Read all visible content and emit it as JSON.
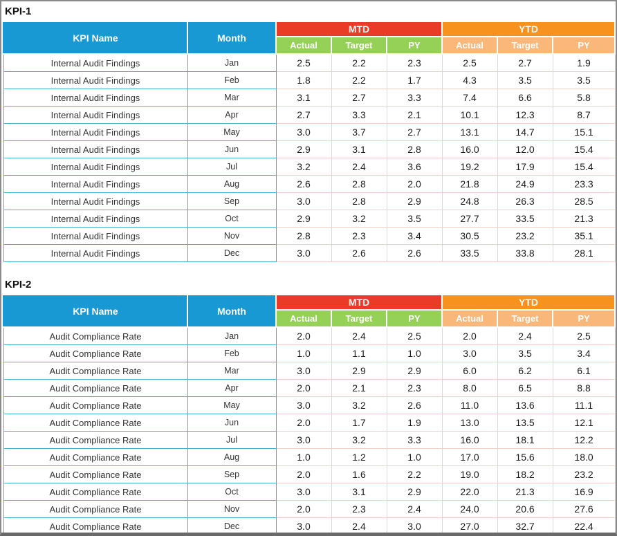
{
  "headers": {
    "kpi_name": "KPI Name",
    "month": "Month",
    "mtd": "MTD",
    "ytd": "YTD",
    "actual": "Actual",
    "target": "Target",
    "py": "PY"
  },
  "colors": {
    "header_blue": "#1899d3",
    "mtd_red": "#e93b25",
    "mtd_sub_green": "#95d156",
    "ytd_orange": "#f8921f",
    "ytd_sub_light_orange": "#f9b779",
    "name_cell_border_teal": "#45b1ce",
    "num_cell_border_pink": "#f4cfc7"
  },
  "sections": [
    {
      "title": "KPI-1",
      "rows": [
        {
          "kpi": "Internal Audit Findings",
          "month": "Jan",
          "mtd": [
            "2.5",
            "2.2",
            "2.3"
          ],
          "ytd": [
            "2.5",
            "2.7",
            "1.9"
          ]
        },
        {
          "kpi": "Internal Audit Findings",
          "month": "Feb",
          "mtd": [
            "1.8",
            "2.2",
            "1.7"
          ],
          "ytd": [
            "4.3",
            "3.5",
            "3.5"
          ]
        },
        {
          "kpi": "Internal Audit Findings",
          "month": "Mar",
          "mtd": [
            "3.1",
            "2.7",
            "3.3"
          ],
          "ytd": [
            "7.4",
            "6.6",
            "5.8"
          ]
        },
        {
          "kpi": "Internal Audit Findings",
          "month": "Apr",
          "mtd": [
            "2.7",
            "3.3",
            "2.1"
          ],
          "ytd": [
            "10.1",
            "12.3",
            "8.7"
          ]
        },
        {
          "kpi": "Internal Audit Findings",
          "month": "May",
          "mtd": [
            "3.0",
            "3.7",
            "2.7"
          ],
          "ytd": [
            "13.1",
            "14.7",
            "15.1"
          ]
        },
        {
          "kpi": "Internal Audit Findings",
          "month": "Jun",
          "mtd": [
            "2.9",
            "3.1",
            "2.8"
          ],
          "ytd": [
            "16.0",
            "12.0",
            "15.4"
          ]
        },
        {
          "kpi": "Internal Audit Findings",
          "month": "Jul",
          "mtd": [
            "3.2",
            "2.4",
            "3.6"
          ],
          "ytd": [
            "19.2",
            "17.9",
            "15.4"
          ]
        },
        {
          "kpi": "Internal Audit Findings",
          "month": "Aug",
          "mtd": [
            "2.6",
            "2.8",
            "2.0"
          ],
          "ytd": [
            "21.8",
            "24.9",
            "23.3"
          ]
        },
        {
          "kpi": "Internal Audit Findings",
          "month": "Sep",
          "mtd": [
            "3.0",
            "2.8",
            "2.9"
          ],
          "ytd": [
            "24.8",
            "26.3",
            "28.5"
          ]
        },
        {
          "kpi": "Internal Audit Findings",
          "month": "Oct",
          "mtd": [
            "2.9",
            "3.2",
            "3.5"
          ],
          "ytd": [
            "27.7",
            "33.5",
            "21.3"
          ]
        },
        {
          "kpi": "Internal Audit Findings",
          "month": "Nov",
          "mtd": [
            "2.8",
            "2.3",
            "3.4"
          ],
          "ytd": [
            "30.5",
            "23.2",
            "35.1"
          ]
        },
        {
          "kpi": "Internal Audit Findings",
          "month": "Dec",
          "mtd": [
            "3.0",
            "2.6",
            "2.6"
          ],
          "ytd": [
            "33.5",
            "33.8",
            "28.1"
          ]
        }
      ]
    },
    {
      "title": "KPI-2",
      "rows": [
        {
          "kpi": "Audit Compliance Rate",
          "month": "Jan",
          "mtd": [
            "2.0",
            "2.4",
            "2.5"
          ],
          "ytd": [
            "2.0",
            "2.4",
            "2.5"
          ]
        },
        {
          "kpi": "Audit Compliance Rate",
          "month": "Feb",
          "mtd": [
            "1.0",
            "1.1",
            "1.0"
          ],
          "ytd": [
            "3.0",
            "3.5",
            "3.4"
          ]
        },
        {
          "kpi": "Audit Compliance Rate",
          "month": "Mar",
          "mtd": [
            "3.0",
            "2.9",
            "2.9"
          ],
          "ytd": [
            "6.0",
            "6.2",
            "6.1"
          ]
        },
        {
          "kpi": "Audit Compliance Rate",
          "month": "Apr",
          "mtd": [
            "2.0",
            "2.1",
            "2.3"
          ],
          "ytd": [
            "8.0",
            "6.5",
            "8.8"
          ]
        },
        {
          "kpi": "Audit Compliance Rate",
          "month": "May",
          "mtd": [
            "3.0",
            "3.2",
            "2.6"
          ],
          "ytd": [
            "11.0",
            "13.6",
            "11.1"
          ]
        },
        {
          "kpi": "Audit Compliance Rate",
          "month": "Jun",
          "mtd": [
            "2.0",
            "1.7",
            "1.9"
          ],
          "ytd": [
            "13.0",
            "13.5",
            "12.1"
          ]
        },
        {
          "kpi": "Audit Compliance Rate",
          "month": "Jul",
          "mtd": [
            "3.0",
            "3.2",
            "3.3"
          ],
          "ytd": [
            "16.0",
            "18.1",
            "12.2"
          ]
        },
        {
          "kpi": "Audit Compliance Rate",
          "month": "Aug",
          "mtd": [
            "1.0",
            "1.2",
            "1.0"
          ],
          "ytd": [
            "17.0",
            "15.6",
            "18.0"
          ]
        },
        {
          "kpi": "Audit Compliance Rate",
          "month": "Sep",
          "mtd": [
            "2.0",
            "1.6",
            "2.2"
          ],
          "ytd": [
            "19.0",
            "18.2",
            "23.2"
          ]
        },
        {
          "kpi": "Audit Compliance Rate",
          "month": "Oct",
          "mtd": [
            "3.0",
            "3.1",
            "2.9"
          ],
          "ytd": [
            "22.0",
            "21.3",
            "16.9"
          ]
        },
        {
          "kpi": "Audit Compliance Rate",
          "month": "Nov",
          "mtd": [
            "2.0",
            "2.3",
            "2.4"
          ],
          "ytd": [
            "24.0",
            "20.6",
            "27.6"
          ]
        },
        {
          "kpi": "Audit Compliance Rate",
          "month": "Dec",
          "mtd": [
            "3.0",
            "2.4",
            "3.0"
          ],
          "ytd": [
            "27.0",
            "32.7",
            "22.4"
          ]
        }
      ]
    }
  ]
}
